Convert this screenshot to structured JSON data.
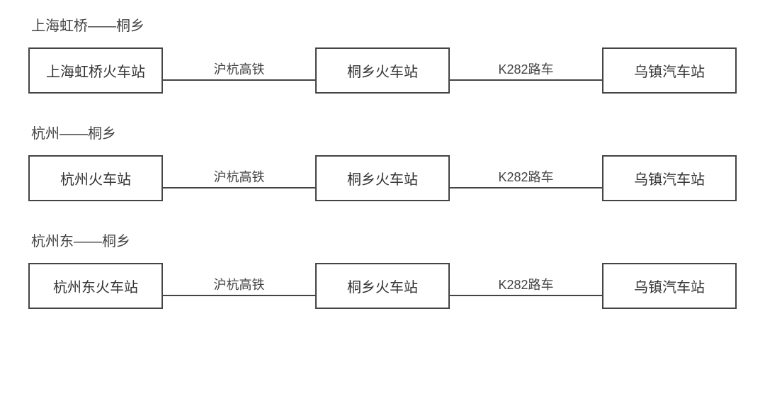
{
  "colors": {
    "border": "#444444",
    "text": "#333333",
    "title": "#444444",
    "background": "#ffffff"
  },
  "typography": {
    "title_fontsize": 20,
    "node_fontsize": 20,
    "edge_fontsize": 18
  },
  "routes": [
    {
      "title": "上海虹桥——桐乡",
      "nodes": [
        "上海虹桥火车站",
        "桐乡火车站",
        "乌镇汽车站"
      ],
      "edges": [
        "沪杭高铁",
        "K282路车"
      ]
    },
    {
      "title": "杭州——桐乡",
      "nodes": [
        "杭州火车站",
        "桐乡火车站",
        "乌镇汽车站"
      ],
      "edges": [
        "沪杭高铁",
        "K282路车"
      ]
    },
    {
      "title": "杭州东——桐乡",
      "nodes": [
        "杭州东火车站",
        "桐乡火车站",
        "乌镇汽车站"
      ],
      "edges": [
        "沪杭高铁",
        "K282路车"
      ]
    }
  ]
}
